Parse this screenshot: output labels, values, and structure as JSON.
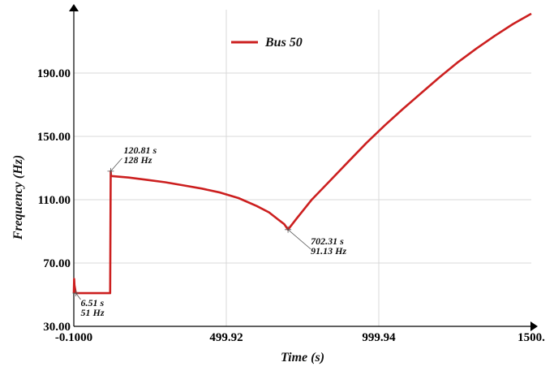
{
  "chart_data": {
    "type": "line",
    "xlabel": "Time (s)",
    "ylabel": "Frequency (Hz)",
    "xlim": [
      -0.1,
      1500
    ],
    "ylim": [
      30,
      230
    ],
    "x_ticks": [
      "-0.1000",
      "499.92",
      "999.94",
      "1500."
    ],
    "x_tick_values": [
      -0.1,
      499.92,
      999.94,
      1500
    ],
    "y_ticks": [
      "30.00",
      "70.00",
      "110.00",
      "150.00",
      "190.00"
    ],
    "y_tick_values": [
      30,
      70,
      110,
      150,
      190
    ],
    "grid": true,
    "legend_position": "top-center",
    "series": [
      {
        "name": "Bus 50",
        "color": "#cc1f1f",
        "x": [
          -0.1,
          1,
          2,
          6.51,
          20,
          60,
          100,
          119,
          120.81,
          122,
          180,
          240,
          300,
          360,
          420,
          480,
          540,
          600,
          640,
          670,
          690,
          702.31,
          730,
          780,
          840,
          900,
          960,
          1020,
          1080,
          1140,
          1200,
          1260,
          1320,
          1380,
          1440,
          1500
        ],
        "y": [
          51,
          60,
          56,
          51,
          51,
          51,
          51,
          51,
          128,
          125,
          124,
          122.5,
          121,
          119,
          117,
          114.5,
          111,
          106,
          102,
          97.5,
          94.5,
          91.13,
          98,
          110,
          122,
          134,
          146,
          157,
          167.5,
          177.5,
          187.5,
          197,
          205.5,
          213.5,
          221,
          227.5
        ]
      }
    ],
    "annotations": [
      {
        "x": 6.51,
        "y": 51,
        "lines": [
          "6.51 s",
          "51 Hz"
        ]
      },
      {
        "x": 120.81,
        "y": 128,
        "lines": [
          "120.81 s",
          "128 Hz"
        ]
      },
      {
        "x": 702.31,
        "y": 91.13,
        "lines": [
          "702.31 s",
          "91.13 Hz"
        ]
      }
    ]
  }
}
